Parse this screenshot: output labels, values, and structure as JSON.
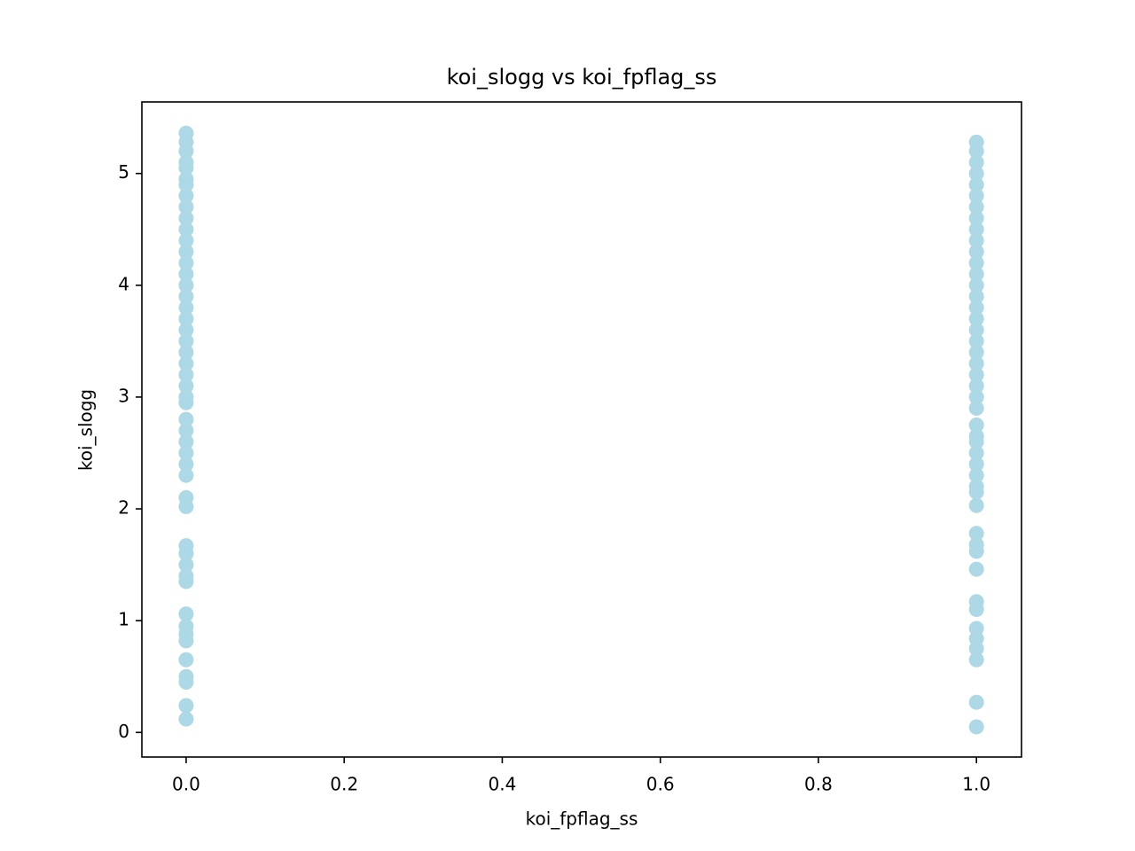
{
  "chart_data": {
    "type": "scatter",
    "title": "koi_slogg vs koi_fpflag_ss",
    "x_label": "koi_fpflag_ss",
    "y_label": "koi_slogg",
    "x": [
      0,
      0,
      0,
      0,
      0,
      0,
      0,
      0,
      0,
      0,
      0,
      0,
      0,
      0,
      0,
      0,
      0,
      0,
      0,
      0,
      0,
      0,
      0,
      0,
      0,
      0,
      0,
      0,
      0,
      0,
      0,
      0,
      0,
      0,
      0,
      0,
      0,
      0,
      0,
      0,
      0,
      0,
      0,
      0,
      0,
      0,
      0,
      0,
      0,
      1,
      1,
      1,
      1,
      1,
      1,
      1,
      1,
      1,
      1,
      1,
      1,
      1,
      1,
      1,
      1,
      1,
      1,
      1,
      1,
      1,
      1,
      1,
      1,
      1,
      1,
      1,
      1,
      1,
      1,
      1,
      1,
      1,
      1,
      1,
      1,
      1,
      1,
      1,
      1,
      1,
      1,
      1,
      1,
      1,
      1
    ],
    "series": [
      {
        "color": "#add8e6",
        "values": [
          5.36,
          5.28,
          5.2,
          5.1,
          5.05,
          4.95,
          4.9,
          4.8,
          4.7,
          4.6,
          4.5,
          4.4,
          4.3,
          4.2,
          4.1,
          4.0,
          3.9,
          3.8,
          3.7,
          3.6,
          3.5,
          3.4,
          3.3,
          3.2,
          3.1,
          3.0,
          2.95,
          2.8,
          2.7,
          2.6,
          2.5,
          2.4,
          2.3,
          2.1,
          2.02,
          1.67,
          1.6,
          1.5,
          1.4,
          1.35,
          1.06,
          0.95,
          0.88,
          0.82,
          0.65,
          0.5,
          0.45,
          0.24,
          0.12,
          5.28,
          5.2,
          5.1,
          5.0,
          4.9,
          4.8,
          4.7,
          4.6,
          4.5,
          4.4,
          4.3,
          4.2,
          4.1,
          4.0,
          3.9,
          3.8,
          3.7,
          3.6,
          3.5,
          3.4,
          3.3,
          3.2,
          3.1,
          3.0,
          2.9,
          2.75,
          2.65,
          2.6,
          2.5,
          2.4,
          2.3,
          2.2,
          2.15,
          2.03,
          1.78,
          1.68,
          1.62,
          1.46,
          1.17,
          1.1,
          0.93,
          0.84,
          0.75,
          0.65,
          0.27,
          0.05
        ]
      }
    ],
    "xlim": [
      -0.056,
      1.057
    ],
    "xticks": [
      {
        "value": 0,
        "label": "0.0"
      },
      0.2,
      0.4,
      0.6,
      0.8,
      {
        "value": 1,
        "label": "1.0"
      }
    ],
    "ylim": [
      -0.22,
      5.64
    ],
    "yticks": [
      0,
      1,
      2,
      3,
      4,
      5
    ]
  }
}
